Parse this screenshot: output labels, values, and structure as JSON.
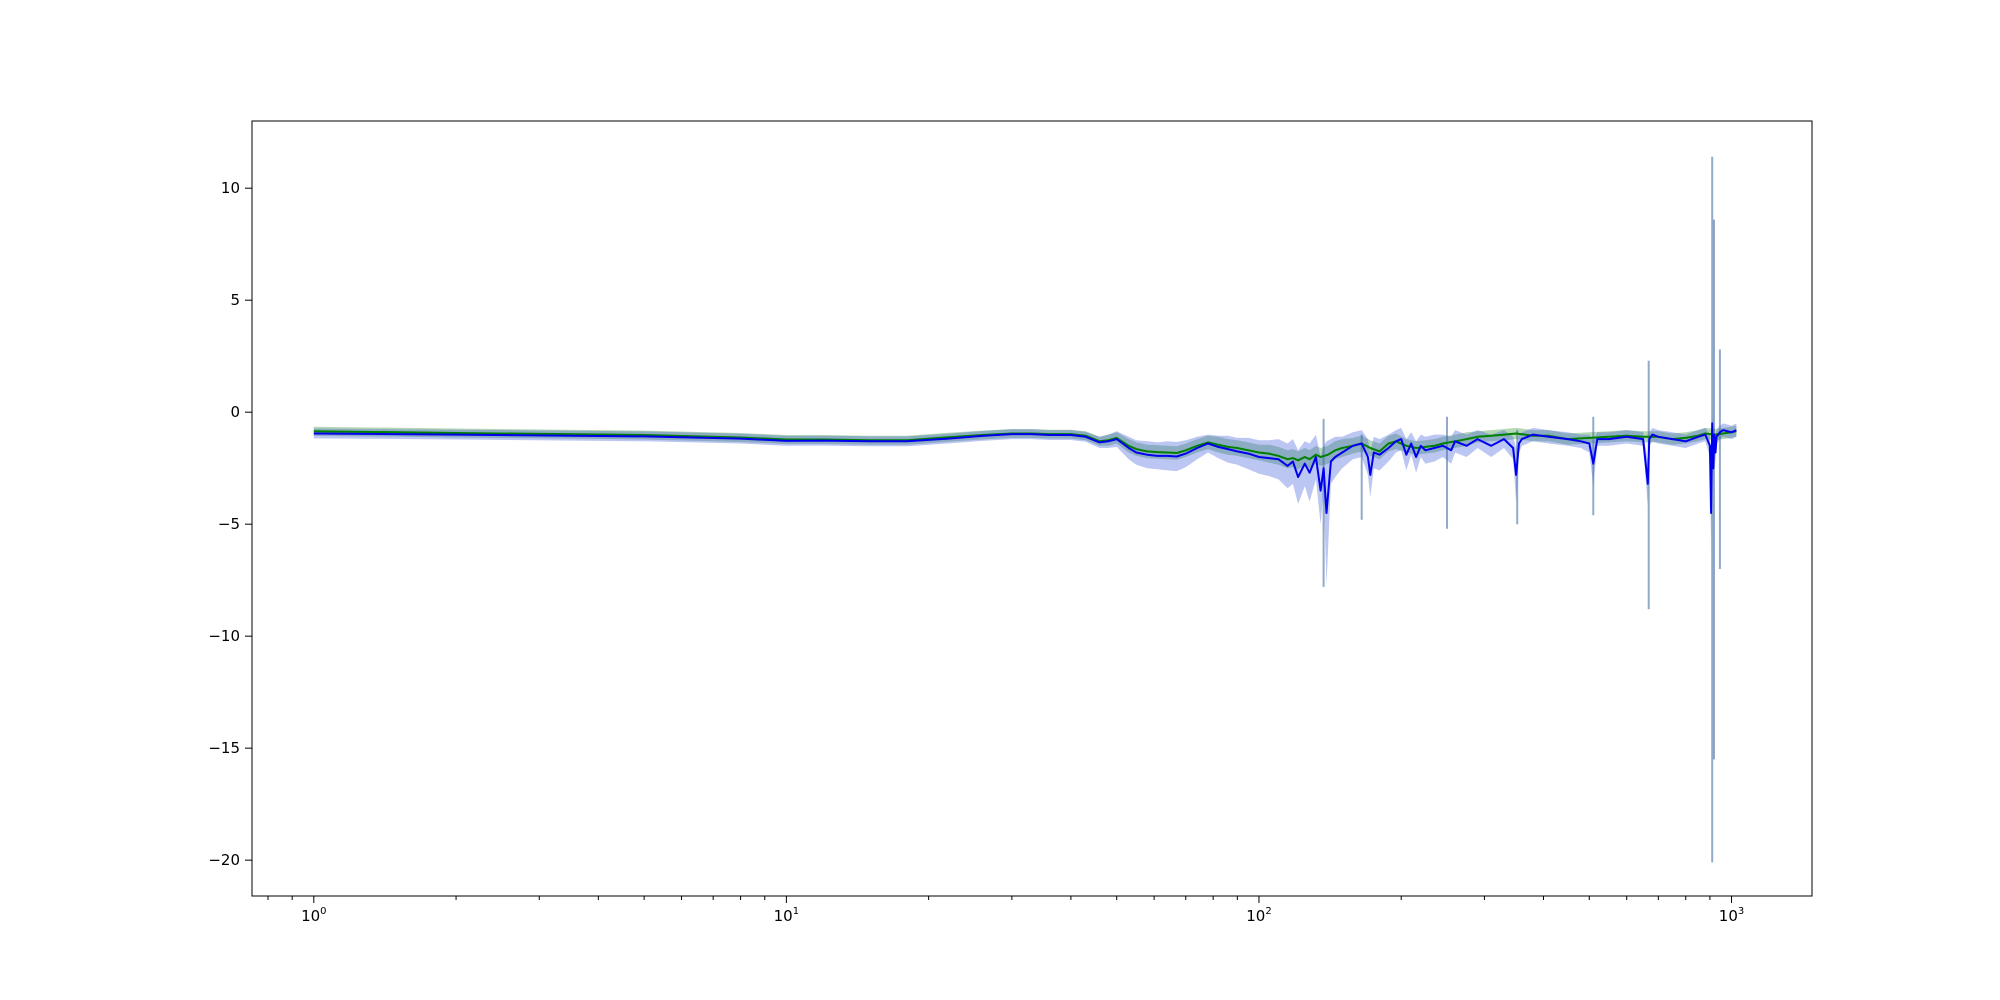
{
  "chart_data": {
    "type": "line",
    "title": "",
    "xlabel": "",
    "ylabel": "",
    "xscale": "log",
    "xlim": [
      0.74,
      1480
    ],
    "ylim": [
      -21.6,
      13.0
    ],
    "grid": false,
    "legend": "none",
    "x_major_ticks": [
      {
        "value": 1,
        "base": "10",
        "exp": "0"
      },
      {
        "value": 10,
        "base": "10",
        "exp": "1"
      },
      {
        "value": 100,
        "base": "10",
        "exp": "2"
      },
      {
        "value": 1000,
        "base": "10",
        "exp": "3"
      }
    ],
    "y_ticks": [
      {
        "value": 10,
        "label": "10"
      },
      {
        "value": 5,
        "label": "5"
      },
      {
        "value": 0,
        "label": "0"
      },
      {
        "value": -5,
        "label": "−5"
      },
      {
        "value": -10,
        "label": "−10"
      },
      {
        "value": -15,
        "label": "−15"
      },
      {
        "value": -20,
        "label": "−20"
      }
    ],
    "colors": {
      "series_a_line": "#008000",
      "series_a_band": "#2e8b2e",
      "series_b_line": "#0000ee",
      "series_b_band": "#3b5bdb",
      "spike_band": "#4a6fa5"
    },
    "series": [
      {
        "color": "#008000",
        "band_color": "#2e8b2e",
        "x": [
          1,
          2,
          5,
          8,
          10,
          12,
          15,
          18,
          22,
          26,
          30,
          33,
          36,
          40,
          43,
          46,
          48,
          50,
          53,
          55,
          58,
          61,
          64,
          67,
          70,
          74,
          78,
          82,
          86,
          90,
          95,
          100,
          105,
          110,
          115,
          118,
          121,
          125,
          128,
          132,
          135,
          140,
          145,
          150,
          158,
          165,
          172,
          180,
          188,
          195,
          205,
          215,
          225,
          235,
          245,
          260,
          275,
          290,
          310,
          330,
          350,
          380,
          410,
          450,
          500,
          550,
          600,
          650,
          700,
          750,
          800,
          850,
          880,
          920,
          960,
          1000,
          1024
        ],
        "y": [
          -0.85,
          -0.93,
          -1.02,
          -1.13,
          -1.22,
          -1.22,
          -1.25,
          -1.25,
          -1.12,
          -1.02,
          -0.95,
          -0.95,
          -0.98,
          -0.98,
          -1.05,
          -1.3,
          -1.25,
          -1.15,
          -1.5,
          -1.65,
          -1.75,
          -1.78,
          -1.8,
          -1.82,
          -1.7,
          -1.5,
          -1.35,
          -1.45,
          -1.55,
          -1.6,
          -1.7,
          -1.8,
          -1.85,
          -1.95,
          -2.1,
          -2.05,
          -2.15,
          -2.0,
          -2.1,
          -1.9,
          -2.0,
          -1.9,
          -1.7,
          -1.6,
          -1.5,
          -1.4,
          -1.6,
          -1.75,
          -1.4,
          -1.3,
          -1.5,
          -1.6,
          -1.55,
          -1.5,
          -1.4,
          -1.3,
          -1.2,
          -1.1,
          -1.05,
          -1.0,
          -0.95,
          -1.05,
          -1.05,
          -1.2,
          -1.15,
          -1.1,
          -1.05,
          -1.1,
          -1.1,
          -1.2,
          -1.15,
          -1.05,
          -0.95,
          -1.0,
          -0.95,
          -0.9,
          -0.85
        ],
        "band_halfwidth": [
          0.2,
          0.2,
          0.2,
          0.2,
          0.2,
          0.2,
          0.2,
          0.2,
          0.2,
          0.2,
          0.2,
          0.2,
          0.2,
          0.2,
          0.2,
          0.2,
          0.25,
          0.25,
          0.3,
          0.3,
          0.3,
          0.3,
          0.3,
          0.3,
          0.3,
          0.3,
          0.3,
          0.35,
          0.35,
          0.35,
          0.35,
          0.35,
          0.4,
          0.4,
          0.4,
          0.4,
          0.4,
          0.4,
          0.4,
          0.4,
          0.4,
          0.4,
          0.4,
          0.4,
          0.35,
          0.35,
          0.35,
          0.35,
          0.35,
          0.35,
          0.3,
          0.3,
          0.3,
          0.3,
          0.3,
          0.3,
          0.3,
          0.25,
          0.25,
          0.25,
          0.25,
          0.25,
          0.25,
          0.25,
          0.25,
          0.25,
          0.25,
          0.25,
          0.25,
          0.25,
          0.25,
          0.25,
          0.25,
          0.25,
          0.25,
          0.25,
          0.25
        ]
      },
      {
        "color": "#0000ee",
        "band_color": "#3b5bdb",
        "x": [
          1,
          2,
          5,
          8,
          10,
          12,
          15,
          18,
          22,
          26,
          30,
          33,
          36,
          40,
          43,
          46,
          48,
          50,
          53,
          55,
          58,
          61,
          64,
          67,
          70,
          74,
          78,
          82,
          86,
          90,
          95,
          100,
          105,
          110,
          115,
          118,
          121,
          125,
          128,
          132,
          135,
          137,
          139,
          142,
          145,
          150,
          158,
          165,
          170,
          172,
          175,
          180,
          188,
          195,
          200,
          205,
          210,
          215,
          220,
          225,
          235,
          245,
          255,
          260,
          275,
          290,
          310,
          330,
          345,
          350,
          355,
          360,
          380,
          410,
          450,
          480,
          500,
          510,
          520,
          550,
          600,
          650,
          665,
          670,
          680,
          700,
          750,
          800,
          850,
          880,
          900,
          905,
          910,
          915,
          920,
          925,
          930,
          945,
          960,
          1000,
          1024
        ],
        "y": [
          -0.95,
          -1.0,
          -1.08,
          -1.18,
          -1.28,
          -1.27,
          -1.3,
          -1.3,
          -1.18,
          -1.06,
          -0.98,
          -0.98,
          -1.02,
          -1.02,
          -1.1,
          -1.35,
          -1.3,
          -1.2,
          -1.6,
          -1.8,
          -1.9,
          -1.95,
          -1.95,
          -1.98,
          -1.85,
          -1.6,
          -1.4,
          -1.55,
          -1.65,
          -1.75,
          -1.85,
          -2.0,
          -2.05,
          -2.1,
          -2.4,
          -2.2,
          -2.9,
          -2.3,
          -2.7,
          -2.0,
          -3.5,
          -2.5,
          -4.5,
          -2.2,
          -2.0,
          -1.8,
          -1.5,
          -1.4,
          -2.0,
          -2.8,
          -1.8,
          -1.9,
          -1.6,
          -1.3,
          -1.2,
          -1.9,
          -1.4,
          -2.0,
          -1.5,
          -1.7,
          -1.6,
          -1.5,
          -1.7,
          -1.3,
          -1.5,
          -1.2,
          -1.5,
          -1.2,
          -1.6,
          -2.8,
          -1.4,
          -1.2,
          -1.0,
          -1.1,
          -1.2,
          -1.3,
          -1.4,
          -2.3,
          -1.2,
          -1.2,
          -1.1,
          -1.2,
          -3.2,
          -1.2,
          -1.0,
          -1.1,
          -1.2,
          -1.3,
          -1.1,
          -1.0,
          -1.5,
          -4.5,
          -0.5,
          -2.5,
          -1.0,
          -1.8,
          -1.1,
          -0.9,
          -0.8,
          -0.9,
          -0.8
        ],
        "band_halfwidth": [
          0.22,
          0.22,
          0.22,
          0.22,
          0.22,
          0.22,
          0.22,
          0.22,
          0.22,
          0.22,
          0.22,
          0.22,
          0.22,
          0.22,
          0.22,
          0.25,
          0.3,
          0.35,
          0.5,
          0.55,
          0.6,
          0.6,
          0.65,
          0.65,
          0.6,
          0.5,
          0.4,
          0.5,
          0.6,
          0.6,
          0.7,
          0.75,
          0.8,
          0.9,
          1.0,
          1.0,
          1.2,
          1.0,
          1.3,
          1.0,
          1.5,
          1.0,
          3.2,
          1.0,
          0.9,
          0.7,
          0.6,
          0.6,
          0.8,
          1.0,
          0.7,
          0.7,
          0.6,
          0.5,
          0.5,
          0.7,
          0.5,
          0.7,
          0.5,
          0.6,
          0.6,
          0.5,
          0.6,
          0.5,
          0.5,
          0.4,
          0.5,
          0.4,
          0.5,
          1.2,
          0.4,
          0.3,
          0.3,
          0.3,
          0.3,
          0.3,
          0.4,
          1.0,
          0.3,
          0.3,
          0.3,
          0.3,
          1.0,
          0.3,
          0.3,
          0.3,
          0.3,
          0.3,
          0.3,
          0.3,
          0.5,
          1.5,
          0.5,
          0.8,
          0.4,
          0.6,
          0.3,
          0.3,
          0.3,
          0.3,
          0.3
        ]
      }
    ],
    "spikes": [
      {
        "x": 137,
        "ymin": -7.8,
        "ymax": -0.3
      },
      {
        "x": 165,
        "ymin": -4.8,
        "ymax": -1.0
      },
      {
        "x": 250,
        "ymin": -5.2,
        "ymax": -0.2
      },
      {
        "x": 352,
        "ymin": -5.0,
        "ymax": -0.8
      },
      {
        "x": 510,
        "ymin": -4.6,
        "ymax": -0.2
      },
      {
        "x": 668,
        "ymin": -8.8,
        "ymax": 2.3
      },
      {
        "x": 910,
        "ymin": -20.1,
        "ymax": 11.4
      },
      {
        "x": 918,
        "ymin": -15.5,
        "ymax": 8.6
      },
      {
        "x": 945,
        "ymin": -7.0,
        "ymax": 2.8
      }
    ]
  }
}
